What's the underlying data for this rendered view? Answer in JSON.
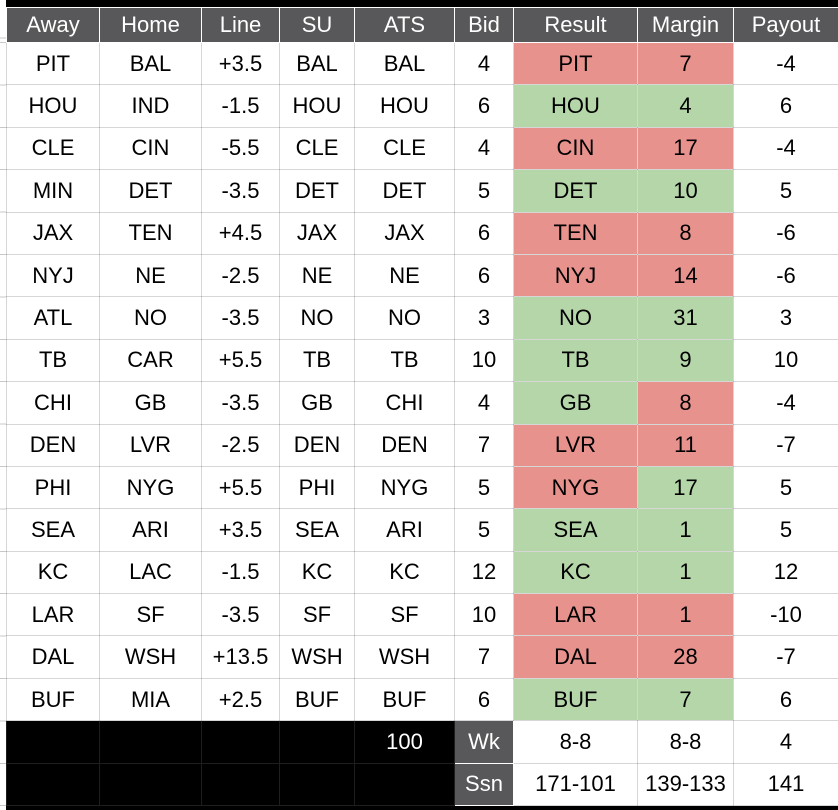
{
  "table": {
    "columns": [
      "Away",
      "Home",
      "Line",
      "SU",
      "ATS",
      "Bid",
      "Result",
      "Margin",
      "Payout"
    ],
    "rows": [
      {
        "away": "PIT",
        "home": "BAL",
        "line": "+3.5",
        "su": "BAL",
        "ats": "BAL",
        "bid": "4",
        "result": "PIT",
        "result_state": "loss",
        "margin": "7",
        "margin_state": "loss",
        "payout": "-4"
      },
      {
        "away": "HOU",
        "home": "IND",
        "line": "-1.5",
        "su": "HOU",
        "ats": "HOU",
        "bid": "6",
        "result": "HOU",
        "result_state": "win",
        "margin": "4",
        "margin_state": "win",
        "payout": "6"
      },
      {
        "away": "CLE",
        "home": "CIN",
        "line": "-5.5",
        "su": "CLE",
        "ats": "CLE",
        "bid": "4",
        "result": "CIN",
        "result_state": "loss",
        "margin": "17",
        "margin_state": "loss",
        "payout": "-4"
      },
      {
        "away": "MIN",
        "home": "DET",
        "line": "-3.5",
        "su": "DET",
        "ats": "DET",
        "bid": "5",
        "result": "DET",
        "result_state": "win",
        "margin": "10",
        "margin_state": "win",
        "payout": "5"
      },
      {
        "away": "JAX",
        "home": "TEN",
        "line": "+4.5",
        "su": "JAX",
        "ats": "JAX",
        "bid": "6",
        "result": "TEN",
        "result_state": "loss",
        "margin": "8",
        "margin_state": "loss",
        "payout": "-6"
      },
      {
        "away": "NYJ",
        "home": "NE",
        "line": "-2.5",
        "su": "NE",
        "ats": "NE",
        "bid": "6",
        "result": "NYJ",
        "result_state": "loss",
        "margin": "14",
        "margin_state": "loss",
        "payout": "-6"
      },
      {
        "away": "ATL",
        "home": "NO",
        "line": "-3.5",
        "su": "NO",
        "ats": "NO",
        "bid": "3",
        "result": "NO",
        "result_state": "win",
        "margin": "31",
        "margin_state": "win",
        "payout": "3"
      },
      {
        "away": "TB",
        "home": "CAR",
        "line": "+5.5",
        "su": "TB",
        "ats": "TB",
        "bid": "10",
        "result": "TB",
        "result_state": "win",
        "margin": "9",
        "margin_state": "win",
        "payout": "10"
      },
      {
        "away": "CHI",
        "home": "GB",
        "line": "-3.5",
        "su": "GB",
        "ats": "CHI",
        "bid": "4",
        "result": "GB",
        "result_state": "win",
        "margin": "8",
        "margin_state": "loss",
        "payout": "-4"
      },
      {
        "away": "DEN",
        "home": "LVR",
        "line": "-2.5",
        "su": "DEN",
        "ats": "DEN",
        "bid": "7",
        "result": "LVR",
        "result_state": "loss",
        "margin": "11",
        "margin_state": "loss",
        "payout": "-7"
      },
      {
        "away": "PHI",
        "home": "NYG",
        "line": "+5.5",
        "su": "PHI",
        "ats": "NYG",
        "bid": "5",
        "result": "NYG",
        "result_state": "loss",
        "margin": "17",
        "margin_state": "win",
        "payout": "5"
      },
      {
        "away": "SEA",
        "home": "ARI",
        "line": "+3.5",
        "su": "SEA",
        "ats": "ARI",
        "bid": "5",
        "result": "SEA",
        "result_state": "win",
        "margin": "1",
        "margin_state": "win",
        "payout": "5"
      },
      {
        "away": "KC",
        "home": "LAC",
        "line": "-1.5",
        "su": "KC",
        "ats": "KC",
        "bid": "12",
        "result": "KC",
        "result_state": "win",
        "margin": "1",
        "margin_state": "win",
        "payout": "12"
      },
      {
        "away": "LAR",
        "home": "SF",
        "line": "-3.5",
        "su": "SF",
        "ats": "SF",
        "bid": "10",
        "result": "LAR",
        "result_state": "loss",
        "margin": "1",
        "margin_state": "loss",
        "payout": "-10"
      },
      {
        "away": "DAL",
        "home": "WSH",
        "line": "+13.5",
        "su": "WSH",
        "ats": "WSH",
        "bid": "7",
        "result": "DAL",
        "result_state": "loss",
        "margin": "28",
        "margin_state": "loss",
        "payout": "-7"
      },
      {
        "away": "BUF",
        "home": "MIA",
        "line": "+2.5",
        "su": "BUF",
        "ats": "BUF",
        "bid": "6",
        "result": "BUF",
        "result_state": "win",
        "margin": "7",
        "margin_state": "win",
        "payout": "6"
      }
    ],
    "footer": {
      "total_bid": "100",
      "week": {
        "label": "Wk",
        "result": "8-8",
        "margin": "8-8",
        "payout": "4"
      },
      "season": {
        "label": "Ssn",
        "result": "171-101",
        "margin": "139-133",
        "payout": "141"
      }
    }
  },
  "colors": {
    "win_green": "#b5d6a9",
    "loss_red": "#e8928e",
    "header_gray": "#58585a",
    "bar_black": "#000000"
  }
}
